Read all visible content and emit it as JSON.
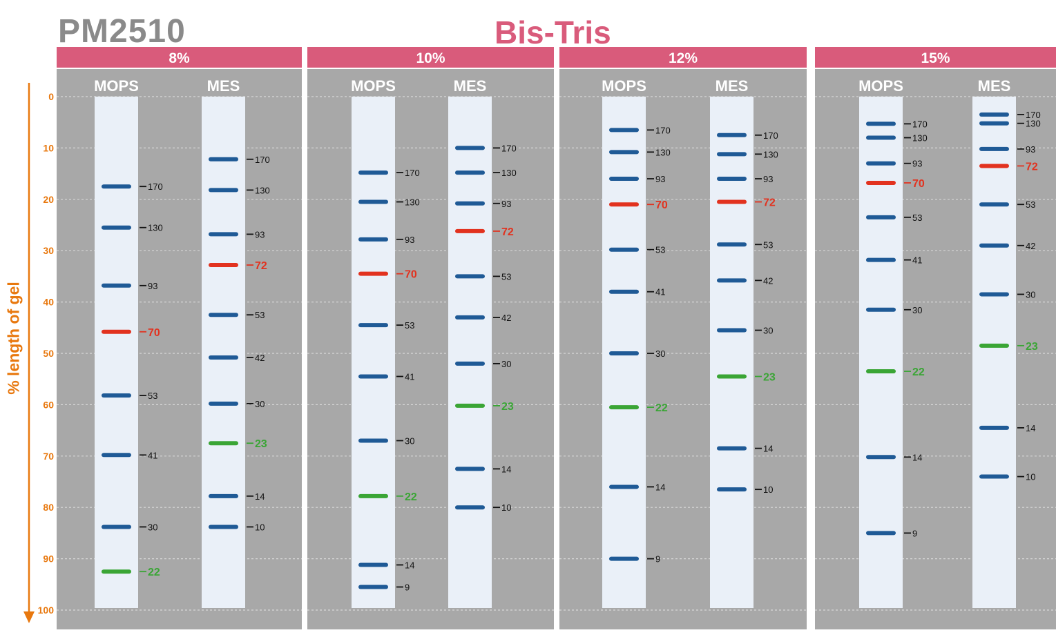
{
  "header": {
    "product_code": "PM2510",
    "gel_type": "Bis-Tris"
  },
  "y_axis": {
    "label": "% length of gel",
    "ticks": [
      "0",
      "10",
      "20",
      "30",
      "40",
      "50",
      "60",
      "70",
      "80",
      "90",
      "100"
    ],
    "range": [
      0,
      100
    ]
  },
  "colors": {
    "header_band": "#d95b7b",
    "panel_bg": "#a8a8a8",
    "lane_bg": "#eaf0f8",
    "band_blue": "#1f5a96",
    "band_red": "#e2321f",
    "band_green": "#3aa535",
    "axis_orange": "#e8780e",
    "grid": "#d8d8d8"
  },
  "panels": [
    {
      "percent": "8%",
      "lanes": [
        {
          "buffer": "MOPS",
          "bands": [
            {
              "size": "170",
              "pos": 17.5,
              "color": "blue"
            },
            {
              "size": "130",
              "pos": 25.5,
              "color": "blue"
            },
            {
              "size": "93",
              "pos": 36.8,
              "color": "blue"
            },
            {
              "size": "70",
              "pos": 45.8,
              "color": "red"
            },
            {
              "size": "53",
              "pos": 58.2,
              "color": "blue"
            },
            {
              "size": "41",
              "pos": 69.8,
              "color": "blue"
            },
            {
              "size": "30",
              "pos": 83.8,
              "color": "blue"
            },
            {
              "size": "22",
              "pos": 92.5,
              "color": "green"
            }
          ]
        },
        {
          "buffer": "MES",
          "bands": [
            {
              "size": "170",
              "pos": 12.2,
              "color": "blue"
            },
            {
              "size": "130",
              "pos": 18.2,
              "color": "blue"
            },
            {
              "size": "93",
              "pos": 26.8,
              "color": "blue"
            },
            {
              "size": "72",
              "pos": 32.8,
              "color": "red"
            },
            {
              "size": "53",
              "pos": 42.5,
              "color": "blue"
            },
            {
              "size": "42",
              "pos": 50.8,
              "color": "blue"
            },
            {
              "size": "30",
              "pos": 59.8,
              "color": "blue"
            },
            {
              "size": "23",
              "pos": 67.5,
              "color": "green"
            },
            {
              "size": "14",
              "pos": 77.8,
              "color": "blue"
            },
            {
              "size": "10",
              "pos": 83.8,
              "color": "blue"
            }
          ]
        }
      ]
    },
    {
      "percent": "10%",
      "lanes": [
        {
          "buffer": "MOPS",
          "bands": [
            {
              "size": "170",
              "pos": 14.8,
              "color": "blue"
            },
            {
              "size": "130",
              "pos": 20.5,
              "color": "blue"
            },
            {
              "size": "93",
              "pos": 27.8,
              "color": "blue"
            },
            {
              "size": "70",
              "pos": 34.5,
              "color": "red"
            },
            {
              "size": "53",
              "pos": 44.5,
              "color": "blue"
            },
            {
              "size": "41",
              "pos": 54.5,
              "color": "blue"
            },
            {
              "size": "30",
              "pos": 67.0,
              "color": "blue"
            },
            {
              "size": "22",
              "pos": 77.8,
              "color": "green"
            },
            {
              "size": "14",
              "pos": 91.2,
              "color": "blue"
            },
            {
              "size": "9",
              "pos": 95.5,
              "color": "blue"
            }
          ]
        },
        {
          "buffer": "MES",
          "bands": [
            {
              "size": "170",
              "pos": 10.0,
              "color": "blue"
            },
            {
              "size": "130",
              "pos": 14.8,
              "color": "blue"
            },
            {
              "size": "93",
              "pos": 20.8,
              "color": "blue"
            },
            {
              "size": "72",
              "pos": 26.2,
              "color": "red"
            },
            {
              "size": "53",
              "pos": 35.0,
              "color": "blue"
            },
            {
              "size": "42",
              "pos": 43.0,
              "color": "blue"
            },
            {
              "size": "30",
              "pos": 52.0,
              "color": "blue"
            },
            {
              "size": "23",
              "pos": 60.2,
              "color": "green"
            },
            {
              "size": "14",
              "pos": 72.5,
              "color": "blue"
            },
            {
              "size": "10",
              "pos": 80.0,
              "color": "blue"
            }
          ]
        }
      ]
    },
    {
      "percent": "12%",
      "lanes": [
        {
          "buffer": "MOPS",
          "bands": [
            {
              "size": "170",
              "pos": 6.5,
              "color": "blue"
            },
            {
              "size": "130",
              "pos": 10.8,
              "color": "blue"
            },
            {
              "size": "93",
              "pos": 16.0,
              "color": "blue"
            },
            {
              "size": "70",
              "pos": 21.0,
              "color": "red"
            },
            {
              "size": "53",
              "pos": 29.8,
              "color": "blue"
            },
            {
              "size": "41",
              "pos": 38.0,
              "color": "blue"
            },
            {
              "size": "30",
              "pos": 50.0,
              "color": "blue"
            },
            {
              "size": "22",
              "pos": 60.5,
              "color": "green"
            },
            {
              "size": "14",
              "pos": 76.0,
              "color": "blue"
            },
            {
              "size": "9",
              "pos": 90.0,
              "color": "blue"
            }
          ]
        },
        {
          "buffer": "MES",
          "bands": [
            {
              "size": "170",
              "pos": 7.5,
              "color": "blue"
            },
            {
              "size": "130",
              "pos": 11.2,
              "color": "blue"
            },
            {
              "size": "93",
              "pos": 16.0,
              "color": "blue"
            },
            {
              "size": "72",
              "pos": 20.5,
              "color": "red"
            },
            {
              "size": "53",
              "pos": 28.8,
              "color": "blue"
            },
            {
              "size": "42",
              "pos": 35.8,
              "color": "blue"
            },
            {
              "size": "30",
              "pos": 45.5,
              "color": "blue"
            },
            {
              "size": "23",
              "pos": 54.5,
              "color": "green"
            },
            {
              "size": "14",
              "pos": 68.5,
              "color": "blue"
            },
            {
              "size": "10",
              "pos": 76.5,
              "color": "blue"
            }
          ]
        }
      ]
    },
    {
      "percent": "15%",
      "lanes": [
        {
          "buffer": "MOPS",
          "bands": [
            {
              "size": "170",
              "pos": 5.3,
              "color": "blue"
            },
            {
              "size": "130",
              "pos": 8.0,
              "color": "blue"
            },
            {
              "size": "93",
              "pos": 13.0,
              "color": "blue"
            },
            {
              "size": "70",
              "pos": 16.8,
              "color": "red"
            },
            {
              "size": "53",
              "pos": 23.5,
              "color": "blue"
            },
            {
              "size": "41",
              "pos": 31.8,
              "color": "blue"
            },
            {
              "size": "30",
              "pos": 41.5,
              "color": "blue"
            },
            {
              "size": "22",
              "pos": 53.5,
              "color": "green"
            },
            {
              "size": "14",
              "pos": 70.2,
              "color": "blue"
            },
            {
              "size": "9",
              "pos": 85.0,
              "color": "blue"
            }
          ]
        },
        {
          "buffer": "MES",
          "bands": [
            {
              "size": "170",
              "pos": 3.5,
              "color": "blue"
            },
            {
              "size": "130",
              "pos": 5.2,
              "color": "blue"
            },
            {
              "size": "93",
              "pos": 10.2,
              "color": "blue"
            },
            {
              "size": "72",
              "pos": 13.5,
              "color": "red"
            },
            {
              "size": "53",
              "pos": 21.0,
              "color": "blue"
            },
            {
              "size": "42",
              "pos": 29.0,
              "color": "blue"
            },
            {
              "size": "30",
              "pos": 38.5,
              "color": "blue"
            },
            {
              "size": "23",
              "pos": 48.5,
              "color": "green"
            },
            {
              "size": "14",
              "pos": 64.5,
              "color": "blue"
            },
            {
              "size": "10",
              "pos": 74.0,
              "color": "blue"
            }
          ]
        }
      ]
    }
  ]
}
